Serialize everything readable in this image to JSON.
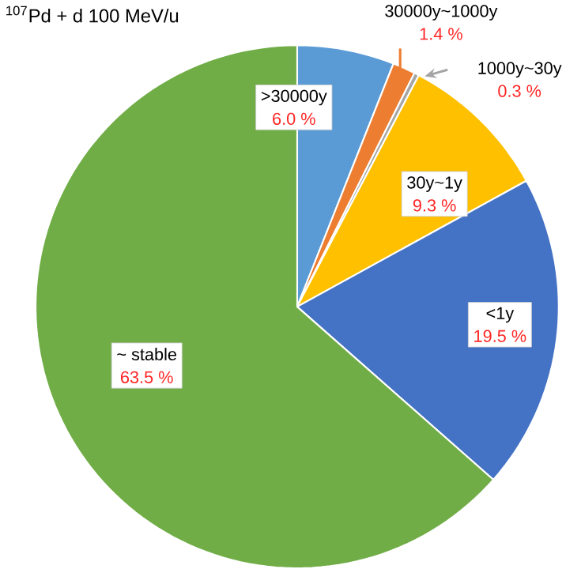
{
  "chart_data": {
    "type": "pie",
    "title": "$^{107}$Pd + d 100 MeV/u",
    "categories": [
      ">30000y",
      "30000y~1000y",
      "1000y~30y",
      "30y~1y",
      "<1y",
      "~ stable"
    ],
    "values": [
      6.0,
      1.4,
      0.3,
      9.3,
      19.5,
      63.5
    ],
    "value_labels": [
      "6.0 %",
      "1.4 %",
      "0.3 %",
      "9.3 %",
      "19.5 %",
      "63.5 %"
    ],
    "colors": [
      "#5b9bd5",
      "#ed7d31",
      "#a5a5a5",
      "#ffc000",
      "#4472c4",
      "#70ad47"
    ]
  }
}
